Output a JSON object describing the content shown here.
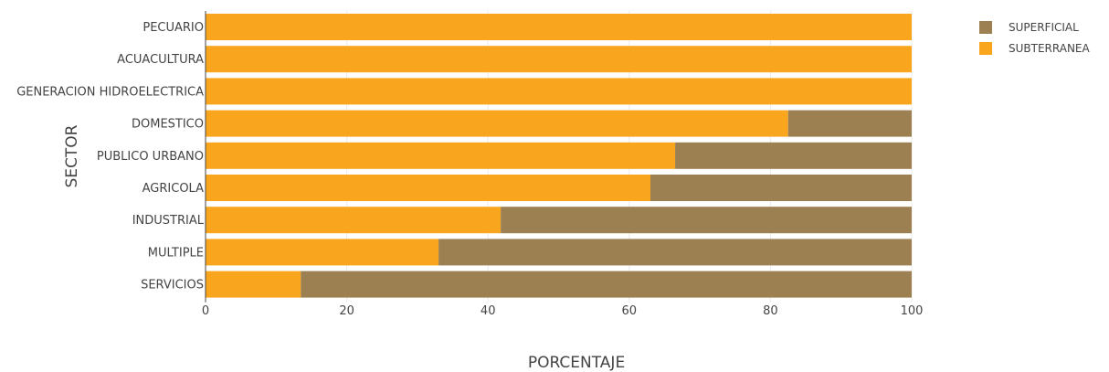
{
  "chart_data": {
    "type": "bar",
    "orientation": "horizontal",
    "stacked": true,
    "categories": [
      "PECUARIO",
      "ACUACULTURA",
      "GENERACION HIDROELECTRICA",
      "DOMESTICO",
      "PUBLICO URBANO",
      "AGRICOLA",
      "INDUSTRIAL",
      "MULTIPLE",
      "SERVICIOS"
    ],
    "series": [
      {
        "name": "SUBTERRANEA",
        "color": "#f9a51e",
        "values": [
          100,
          100,
          100,
          82.5,
          66.5,
          63,
          41.8,
          33,
          13.5
        ]
      },
      {
        "name": "SUPERFICIAL",
        "color": "#9c8052",
        "values": [
          0,
          0,
          0,
          17.5,
          33.5,
          37,
          58.2,
          67,
          86.5
        ]
      }
    ],
    "legend_order": [
      "SUPERFICIAL",
      "SUBTERRANEA"
    ],
    "xlabel": "PORCENTAJE",
    "ylabel": "SECTOR",
    "xlim": [
      0,
      100
    ],
    "xticks": [
      0,
      20,
      40,
      60,
      80,
      100
    ],
    "grid": true,
    "legend_position": "top-right"
  }
}
